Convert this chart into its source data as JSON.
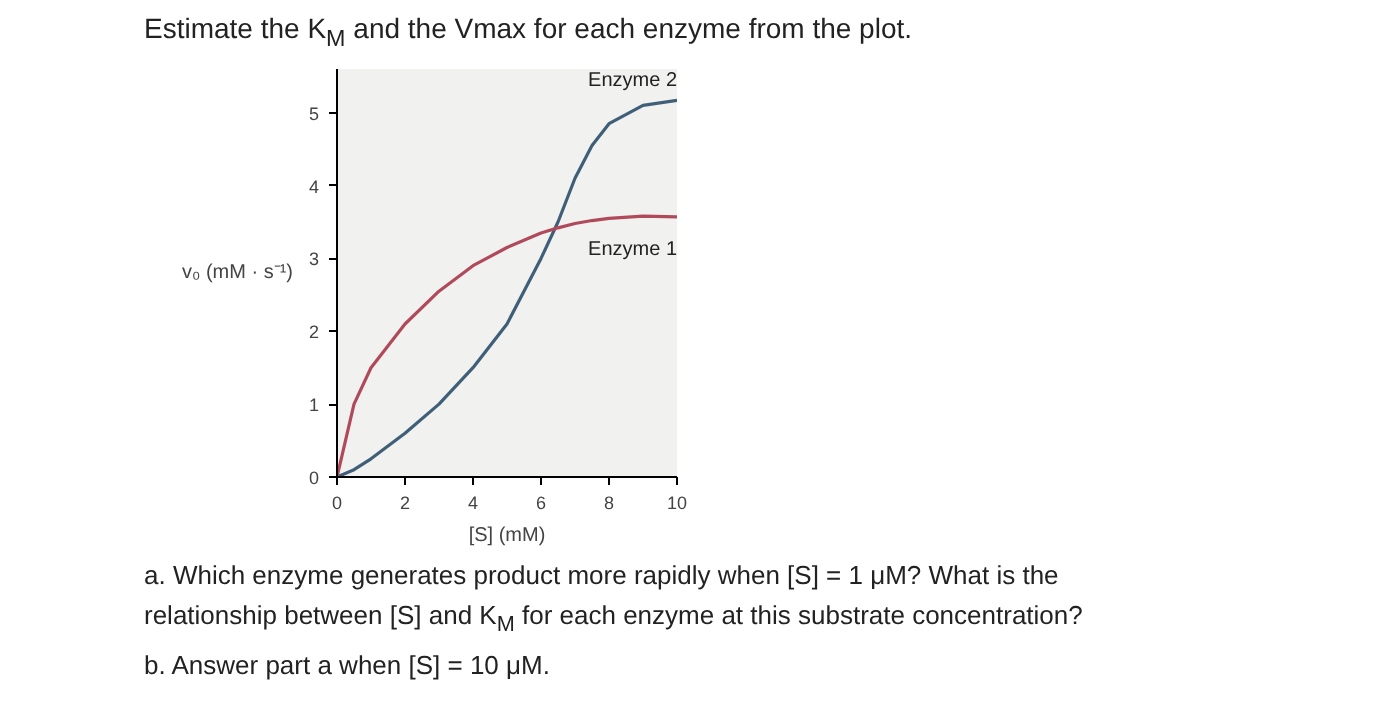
{
  "chart_data": {
    "type": "line",
    "title": "Estimate the K$_{M}$ and the Vmax for each enzyme from the plot.",
    "xlabel": "[S] (mM)",
    "ylabel": "v₀ (mM · s⁻¹)",
    "x": [
      0,
      0.5,
      1,
      2,
      3,
      4,
      5,
      6,
      6.5,
      7,
      7.5,
      8,
      9,
      10
    ],
    "series": [
      {
        "name": "Enzyme 2",
        "color": "#3f5f78",
        "values": [
          0,
          0.1,
          0.25,
          0.6,
          1.0,
          1.5,
          2.1,
          3.0,
          3.5,
          4.1,
          4.55,
          4.85,
          5.1,
          5.17
        ]
      },
      {
        "name": "Enzyme 1",
        "color": "#b04a5a",
        "values": [
          0,
          1.0,
          1.5,
          2.1,
          2.55,
          2.9,
          3.15,
          3.35,
          3.42,
          3.48,
          3.52,
          3.55,
          3.58,
          3.57
        ]
      }
    ],
    "xlim": [
      0,
      10
    ],
    "ylim": [
      0,
      5.6
    ],
    "xticks": [
      0,
      2,
      4,
      6,
      8,
      10
    ],
    "yticks": [
      0,
      1,
      2,
      3,
      4,
      5
    ],
    "grid": false,
    "marker": "none",
    "line_style": "solid",
    "annotations": [
      "a. Which enzyme generates product more rapidly when [S] = 1 μM? What is the",
      "relationship between [S] and K$_{M}$ for each enzyme at this substrate concentration?",
      "b. Answer part a when [S] = 10 μM."
    ]
  }
}
